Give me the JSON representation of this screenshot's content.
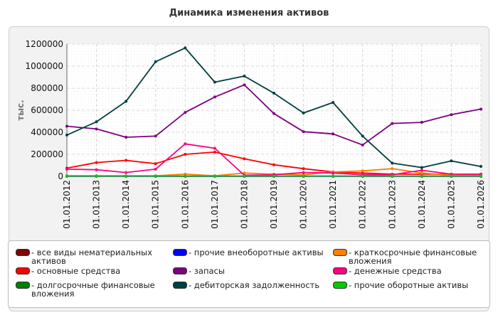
{
  "chart_data": {
    "type": "line",
    "title": "Динамика изменения активов",
    "ylabel": "тыс.",
    "xlabel": "",
    "ylim": [
      0,
      1200000
    ],
    "yticks": [
      "0",
      "200000",
      "400000",
      "600000",
      "800000",
      "1000000",
      "1200000"
    ],
    "categories": [
      "01.01.2012",
      "01.01.2013",
      "01.01.2014",
      "01.01.2015",
      "01.01.2016",
      "01.01.2017",
      "01.01.2018",
      "01.01.2019",
      "01.01.2020",
      "01.01.2021",
      "01.01.2022",
      "01.01.2023",
      "01.01.2024",
      "01.01.2025",
      "01.01.2026"
    ],
    "grid": true,
    "legend_position": "bottom",
    "series": [
      {
        "name": "все виды нематериальных активов",
        "color": "#7f0000",
        "values": [
          2000,
          2000,
          2000,
          2000,
          2000,
          2000,
          2000,
          2000,
          2000,
          2000,
          2000,
          2000,
          2000,
          2000,
          2000
        ]
      },
      {
        "name": "основные средства",
        "color": "#ff0000",
        "values": [
          75000,
          125000,
          145000,
          115000,
          200000,
          220000,
          160000,
          105000,
          70000,
          40000,
          30000,
          20000,
          20000,
          20000,
          20000
        ]
      },
      {
        "name": "долгосрочные финансовые вложения",
        "color": "#007f00",
        "values": [
          3000,
          3000,
          3000,
          3000,
          3000,
          3000,
          3000,
          3000,
          3000,
          3000,
          3000,
          3000,
          3000,
          3000,
          3000
        ]
      },
      {
        "name": "прочие внеоборотные активы",
        "color": "#0000ff",
        "values": [
          2000,
          2000,
          2000,
          2000,
          2000,
          2000,
          2000,
          2000,
          2000,
          2000,
          2000,
          2000,
          2000,
          2000,
          2000
        ]
      },
      {
        "name": "запасы",
        "color": "#7f007f",
        "values": [
          455000,
          430000,
          355000,
          365000,
          580000,
          720000,
          830000,
          570000,
          405000,
          385000,
          285000,
          480000,
          490000,
          560000,
          610000
        ]
      },
      {
        "name": "дебиторская задолженность",
        "color": "#003f3f",
        "values": [
          375000,
          495000,
          680000,
          1040000,
          1165000,
          855000,
          910000,
          755000,
          575000,
          670000,
          365000,
          120000,
          80000,
          140000,
          90000
        ]
      },
      {
        "name": "краткосрочные финансовые вложения",
        "color": "#ff7f00",
        "values": [
          5000,
          5000,
          5000,
          5000,
          20000,
          5000,
          30000,
          20000,
          15000,
          40000,
          50000,
          70000,
          30000,
          10000,
          10000
        ]
      },
      {
        "name": "денежные средства",
        "color": "#ff007f",
        "values": [
          65000,
          60000,
          35000,
          65000,
          295000,
          255000,
          10000,
          15000,
          35000,
          30000,
          15000,
          15000,
          55000,
          20000,
          20000
        ]
      },
      {
        "name": "прочие оборотные активы",
        "color": "#00cc00",
        "values": [
          4000,
          4000,
          4000,
          4000,
          4000,
          4000,
          4000,
          4000,
          4000,
          4000,
          4000,
          4000,
          4000,
          4000,
          4000
        ]
      }
    ]
  }
}
